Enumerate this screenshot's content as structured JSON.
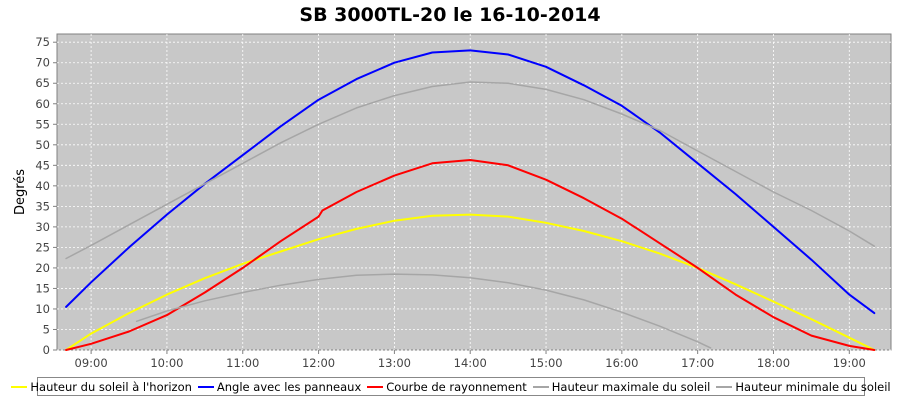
{
  "chart_data": {
    "type": "line",
    "title": "SB 3000TL-20 le 16-10-2014",
    "xlabel": "",
    "ylabel": "Degrés",
    "xlim": [
      8.55,
      19.55
    ],
    "ylim": [
      0,
      77
    ],
    "yticks": [
      0,
      5,
      10,
      15,
      20,
      25,
      30,
      35,
      40,
      45,
      50,
      55,
      60,
      65,
      70,
      75
    ],
    "xticks": [
      {
        "x": 9,
        "label": "09:00"
      },
      {
        "x": 10,
        "label": "10:00"
      },
      {
        "x": 11,
        "label": "11:00"
      },
      {
        "x": 12,
        "label": "12:00"
      },
      {
        "x": 13,
        "label": "13:00"
      },
      {
        "x": 14,
        "label": "14:00"
      },
      {
        "x": 15,
        "label": "15:00"
      },
      {
        "x": 16,
        "label": "16:00"
      },
      {
        "x": 17,
        "label": "17:00"
      },
      {
        "x": 18,
        "label": "18:00"
      },
      {
        "x": 19,
        "label": "19:00"
      }
    ],
    "grid": true,
    "background": "#c8c8c8",
    "legend_position": "bottom",
    "series": [
      {
        "name": "Hauteur du soleil à l'horizon",
        "color": "#ffff00",
        "width": 2,
        "x": [
          8.67,
          9,
          9.5,
          10,
          10.5,
          11,
          11.5,
          12,
          12.5,
          13,
          13.5,
          14,
          14.5,
          15,
          15.5,
          16,
          16.5,
          17,
          17.5,
          18,
          18.5,
          19,
          19.33
        ],
        "y": [
          0,
          4,
          9,
          13.5,
          17.5,
          21,
          24,
          27,
          29.5,
          31.5,
          32.7,
          33,
          32.5,
          31,
          29,
          26.5,
          23.5,
          20,
          16,
          11.8,
          7.5,
          3,
          0
        ]
      },
      {
        "name": "Angle avec les panneaux",
        "color": "#0000ff",
        "width": 2,
        "x": [
          8.67,
          9,
          9.5,
          10,
          10.5,
          11,
          11.5,
          12,
          12.5,
          13,
          13.5,
          14,
          14.5,
          15,
          15.5,
          16,
          16.5,
          17,
          17.5,
          18,
          18.5,
          19,
          19.33
        ],
        "y": [
          10.5,
          16.5,
          25,
          33,
          40.5,
          47.5,
          54.5,
          61,
          66,
          70,
          72.5,
          73,
          72,
          69,
          64.5,
          59.5,
          53,
          45.5,
          38,
          30,
          22,
          13.5,
          9
        ]
      },
      {
        "name": "Courbe de rayonnement",
        "color": "#ff0000",
        "width": 2,
        "x": [
          8.67,
          9,
          9.5,
          10,
          10.5,
          11,
          11.5,
          12,
          12.05,
          12.5,
          13,
          13.5,
          14,
          14.5,
          15,
          15.5,
          16,
          16.5,
          17,
          17.5,
          18,
          18.5,
          19,
          19.33
        ],
        "y": [
          0,
          1.5,
          4.5,
          8.5,
          14,
          20,
          26.5,
          32.5,
          34,
          38.5,
          42.5,
          45.5,
          46.3,
          45,
          41.5,
          37,
          32,
          26,
          20,
          13.5,
          8,
          3.5,
          1,
          0
        ]
      },
      {
        "name": "Hauteur maximale du soleil",
        "color": "#a6a6a6",
        "width": 1.5,
        "x": [
          8.67,
          9,
          9.5,
          10,
          10.5,
          11,
          11.5,
          12,
          12.5,
          13,
          13.5,
          14,
          14.5,
          15,
          15.5,
          16,
          16.5,
          17,
          17.5,
          18,
          18.5,
          19,
          19.33
        ],
        "y": [
          22.3,
          25.5,
          30.5,
          35.5,
          40.5,
          45.5,
          50.5,
          55,
          59,
          62,
          64.2,
          65.3,
          65,
          63.5,
          61,
          57.5,
          53.5,
          48.5,
          43.5,
          38.5,
          34,
          29,
          25.3
        ]
      },
      {
        "name": "Hauteur minimale du soleil",
        "color": "#a6a6a6",
        "width": 1.5,
        "x": [
          9.6,
          10,
          10.5,
          11,
          11.5,
          12,
          12.5,
          13,
          13.5,
          14,
          14.5,
          15,
          15.5,
          16,
          16.5,
          17,
          17.17
        ],
        "y": [
          7,
          9.5,
          12,
          14,
          15.8,
          17.2,
          18.2,
          18.5,
          18.3,
          17.6,
          16.4,
          14.6,
          12.2,
          9.2,
          5.8,
          2,
          0.5
        ]
      }
    ]
  }
}
